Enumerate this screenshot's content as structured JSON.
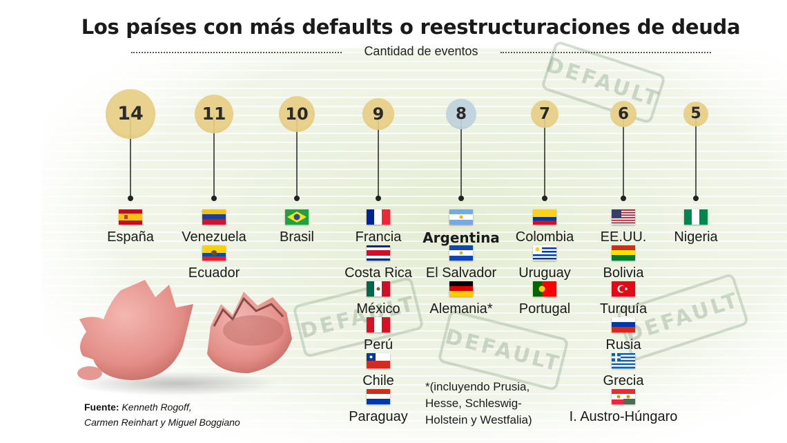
{
  "title": "Los países con más defaults o reestructuraciones de deuda",
  "subtitle": "Cantidad de eventos",
  "colors": {
    "bubble_default": "#e8cf86",
    "bubble_highlight": "#bfd3dd",
    "line": "#222222",
    "background_stripe": "#dfe9d3"
  },
  "chart_data": {
    "type": "bubble",
    "title": "Los países con más defaults o reestructuraciones de deuda",
    "subtitle": "Cantidad de eventos",
    "groups": [
      {
        "value": 14,
        "countries": [
          "España"
        ]
      },
      {
        "value": 11,
        "countries": [
          "Venezuela",
          "Ecuador"
        ]
      },
      {
        "value": 10,
        "countries": [
          "Brasil"
        ]
      },
      {
        "value": 9,
        "countries": [
          "Francia",
          "Costa Rica",
          "México",
          "Perú",
          "Chile",
          "Paraguay"
        ]
      },
      {
        "value": 8,
        "countries": [
          "Argentina",
          "El Salvador",
          "Alemania*"
        ],
        "highlight": true
      },
      {
        "value": 7,
        "countries": [
          "Colombia",
          "Uruguay",
          "Portugal"
        ]
      },
      {
        "value": 6,
        "countries": [
          "EE.UU.",
          "Bolivia",
          "Turquía",
          "Rusia",
          "Grecia",
          "I.  Austro-Húngaro"
        ]
      },
      {
        "value": 5,
        "countries": [
          "Nigeria"
        ]
      }
    ]
  },
  "stamp_text": "DEFAULT",
  "footnote": [
    "*(incluyendo Prusia,",
    "Hesse, Schleswig-",
    "Holstein y Westfalia)"
  ],
  "source": {
    "label": "Fuente:",
    "lines": [
      "Kenneth Rogoff,",
      "Carmen Reinhart y Miguel Boggiano"
    ]
  }
}
